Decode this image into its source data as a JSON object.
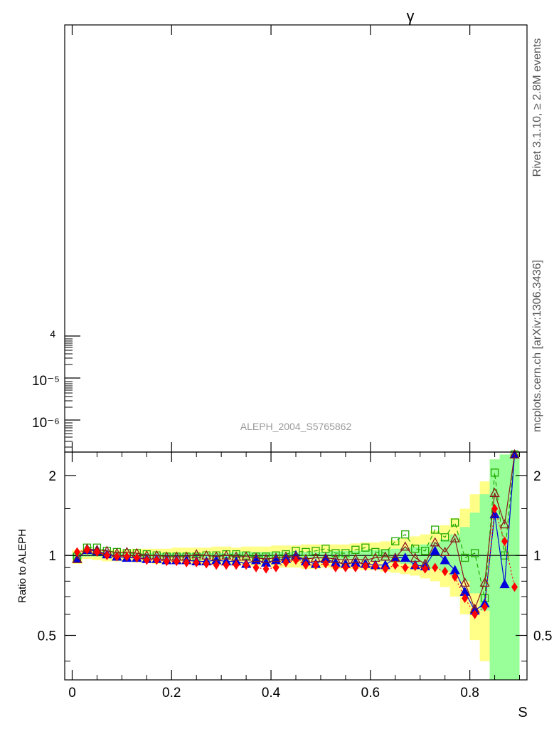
{
  "header": {
    "title": "γ"
  },
  "side_text": {
    "rivet": "Rivet 3.1.10, ≥ 2.8M events",
    "mcplots": "mcplots.cern.ch [arXiv:1306.3436]"
  },
  "upper_panel": {
    "analysis_label": "ALEPH_2004_S5765862",
    "tick_labels": [
      "4",
      "10⁻⁵",
      "10⁻⁶"
    ],
    "yscale": "log"
  },
  "chart_data": {
    "type": "line",
    "title": "γ",
    "xlabel": "S",
    "ylabel": "Ratio to ALEPH",
    "xlim": [
      -0.015,
      0.915
    ],
    "ylim": [
      0.34,
      2.45
    ],
    "yscale": "log",
    "reference_line": 1,
    "x_ticks": [
      0,
      0.2,
      0.4,
      0.6,
      0.8
    ],
    "x_tick_labels": [
      "0",
      "0.2",
      "0.4",
      "0.6",
      "0.8"
    ],
    "y_ticks": [
      0.5,
      1,
      2
    ],
    "y_tick_labels": [
      "0.5",
      "1",
      "2"
    ],
    "x": [
      0.01,
      0.03,
      0.05,
      0.07,
      0.09,
      0.11,
      0.13,
      0.15,
      0.17,
      0.19,
      0.21,
      0.23,
      0.25,
      0.27,
      0.29,
      0.31,
      0.33,
      0.35,
      0.37,
      0.39,
      0.41,
      0.43,
      0.45,
      0.47,
      0.49,
      0.51,
      0.53,
      0.55,
      0.57,
      0.59,
      0.61,
      0.63,
      0.65,
      0.67,
      0.69,
      0.71,
      0.73,
      0.75,
      0.77,
      0.79,
      0.81,
      0.83,
      0.85,
      0.87,
      0.89
    ],
    "bands": [
      {
        "name": "",
        "color": "#ffff88",
        "low": [
          0.93,
          0.97,
          0.96,
          0.95,
          0.95,
          0.95,
          0.94,
          0.94,
          0.93,
          0.93,
          0.93,
          0.93,
          0.92,
          0.93,
          0.92,
          0.92,
          0.92,
          0.92,
          0.91,
          0.91,
          0.9,
          0.9,
          0.9,
          0.89,
          0.89,
          0.9,
          0.89,
          0.89,
          0.89,
          0.88,
          0.88,
          0.87,
          0.86,
          0.85,
          0.84,
          0.82,
          0.8,
          0.76,
          0.7,
          0.6,
          0.48,
          0.4,
          0.33,
          0.33,
          0.33
        ],
        "high": [
          1.05,
          1.06,
          1.05,
          1.05,
          1.05,
          1.05,
          1.06,
          1.06,
          1.06,
          1.06,
          1.07,
          1.07,
          1.07,
          1.07,
          1.08,
          1.08,
          1.07,
          1.08,
          1.08,
          1.08,
          1.09,
          1.09,
          1.09,
          1.1,
          1.1,
          1.1,
          1.1,
          1.1,
          1.11,
          1.12,
          1.12,
          1.13,
          1.14,
          1.16,
          1.18,
          1.2,
          1.24,
          1.3,
          1.38,
          1.5,
          1.7,
          1.9,
          2.3,
          2.4,
          2.4
        ]
      },
      {
        "name": "",
        "color": "#99ff99",
        "low": [
          0.97,
          0.99,
          0.99,
          0.98,
          0.98,
          0.98,
          0.98,
          0.98,
          0.98,
          0.98,
          0.98,
          0.98,
          0.98,
          0.98,
          0.98,
          0.98,
          0.98,
          0.98,
          0.97,
          0.97,
          0.97,
          0.97,
          0.97,
          0.97,
          0.97,
          0.97,
          0.96,
          0.96,
          0.96,
          0.95,
          0.95,
          0.95,
          0.94,
          0.93,
          0.92,
          0.91,
          0.89,
          0.87,
          0.84,
          0.8,
          0.72,
          0.62,
          0.33,
          0.33,
          0.33
        ],
        "high": [
          1.02,
          1.02,
          1.02,
          1.02,
          1.02,
          1.02,
          1.02,
          1.02,
          1.02,
          1.02,
          1.02,
          1.02,
          1.02,
          1.02,
          1.02,
          1.02,
          1.03,
          1.03,
          1.03,
          1.03,
          1.03,
          1.03,
          1.03,
          1.03,
          1.03,
          1.03,
          1.04,
          1.04,
          1.04,
          1.05,
          1.05,
          1.05,
          1.06,
          1.07,
          1.08,
          1.1,
          1.12,
          1.15,
          1.2,
          1.28,
          1.45,
          1.7,
          2.3,
          2.4,
          2.4
        ]
      }
    ],
    "series": [
      {
        "name": "",
        "color": "#22aa00",
        "marker": "open-square",
        "dash": "6,4",
        "values": [
          0.99,
          1.07,
          1.07,
          1.04,
          1.03,
          1.02,
          1.02,
          1.01,
          1.0,
          0.99,
          0.99,
          0.99,
          0.99,
          1.0,
          1.0,
          1.01,
          1.01,
          1.0,
          0.99,
          0.99,
          1.0,
          1.01,
          1.04,
          1.03,
          1.04,
          1.06,
          1.02,
          1.02,
          1.05,
          1.07,
          1.03,
          1.02,
          1.13,
          1.2,
          1.06,
          1.04,
          1.25,
          1.17,
          1.33,
          0.98,
          1.02,
          0.69,
          2.05,
          1.0,
          2.4
        ]
      },
      {
        "name": "",
        "color": "#0000dd",
        "marker": "filled-triangle",
        "dash": "",
        "values": [
          0.97,
          1.05,
          1.04,
          1.01,
          0.99,
          0.98,
          0.98,
          0.97,
          0.97,
          0.96,
          0.96,
          0.96,
          0.95,
          0.95,
          0.96,
          0.95,
          0.95,
          0.93,
          0.96,
          0.94,
          0.96,
          0.97,
          1.0,
          0.95,
          0.93,
          0.97,
          0.94,
          0.93,
          0.94,
          0.93,
          0.92,
          0.92,
          0.98,
          0.98,
          0.92,
          0.91,
          1.04,
          0.96,
          0.88,
          0.73,
          0.62,
          0.66,
          1.43,
          0.78,
          2.4
        ]
      },
      {
        "name": "",
        "color": "#8b1a1a",
        "marker": "open-triangle",
        "dash": "",
        "values": [
          0.97,
          1.06,
          1.05,
          1.04,
          1.02,
          1.03,
          1.02,
          1.0,
          1.0,
          0.99,
          0.99,
          0.99,
          1.01,
          1.0,
          0.99,
          1.0,
          0.99,
          0.99,
          0.98,
          0.97,
          0.98,
          0.99,
          0.99,
          0.97,
          0.98,
          0.98,
          0.97,
          0.96,
          0.97,
          0.96,
          0.98,
          0.99,
          0.98,
          1.08,
          0.98,
          0.93,
          1.12,
          1.03,
          1.16,
          0.79,
          0.63,
          0.79,
          1.72,
          1.31,
          2.4
        ]
      },
      {
        "name": "",
        "color": "#ff0000",
        "marker": "filled-diamond",
        "dash": "2,3",
        "values": [
          1.03,
          1.05,
          1.03,
          1.0,
          0.99,
          0.99,
          0.98,
          0.96,
          0.96,
          0.95,
          0.95,
          0.94,
          0.94,
          0.93,
          0.92,
          0.92,
          0.92,
          0.92,
          0.9,
          0.89,
          0.9,
          0.94,
          0.96,
          0.92,
          0.92,
          0.93,
          0.9,
          0.9,
          0.9,
          0.91,
          0.91,
          0.89,
          0.92,
          0.9,
          0.91,
          0.89,
          0.9,
          0.87,
          0.83,
          0.69,
          0.6,
          0.64,
          1.5,
          1.13,
          0.76
        ]
      }
    ]
  }
}
